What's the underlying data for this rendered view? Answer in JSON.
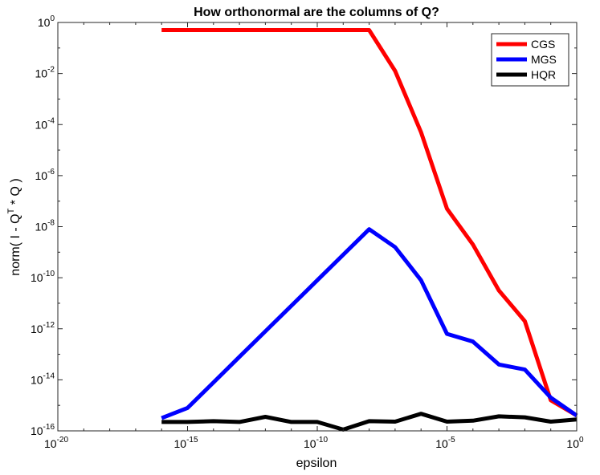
{
  "chart_data": {
    "type": "line",
    "title": "How orthonormal are the columns of Q?",
    "xlabel": "epsilon",
    "ylabel": {
      "pre": "norm(  I  -  Q",
      "sup": "T",
      "post": " * Q  )"
    },
    "xscale": "log",
    "yscale": "log",
    "xlim_exp": [
      -20,
      0
    ],
    "ylim_exp": [
      -16,
      0
    ],
    "xticks": [
      {
        "base": "10",
        "exp": "-20"
      },
      {
        "base": "10",
        "exp": "-15"
      },
      {
        "base": "10",
        "exp": "-10"
      },
      {
        "base": "10",
        "exp": "-5"
      },
      {
        "base": "10",
        "exp": "0"
      }
    ],
    "yticks": [
      {
        "base": "10",
        "exp": "-16"
      },
      {
        "base": "10",
        "exp": "-14"
      },
      {
        "base": "10",
        "exp": "-12"
      },
      {
        "base": "10",
        "exp": "-10"
      },
      {
        "base": "10",
        "exp": "-8"
      },
      {
        "base": "10",
        "exp": "-6"
      },
      {
        "base": "10",
        "exp": "-4"
      },
      {
        "base": "10",
        "exp": "-2"
      },
      {
        "base": "10",
        "exp": "0"
      }
    ],
    "grid": false,
    "legend_position": "top-right",
    "x_log10": [
      -16,
      -15,
      -14,
      -13,
      -12,
      -11,
      -10,
      -9,
      -8,
      -7,
      -6,
      -5,
      -4,
      -3,
      -2,
      -1,
      0
    ],
    "series": [
      {
        "name": "CGS",
        "color": "#ff0000",
        "y_log10": [
          -0.3,
          -0.3,
          -0.3,
          -0.3,
          -0.3,
          -0.3,
          -0.3,
          -0.3,
          -0.3,
          -1.9,
          -4.3,
          -7.3,
          -8.7,
          -10.5,
          -11.7,
          -14.8,
          -15.4
        ]
      },
      {
        "name": "MGS",
        "color": "#0000ff",
        "y_log10": [
          -15.5,
          -15.1,
          -14.1,
          -13.1,
          -12.1,
          -11.1,
          -10.1,
          -9.1,
          -8.1,
          -8.8,
          -10.1,
          -12.2,
          -12.5,
          -13.4,
          -13.6,
          -14.7,
          -15.4
        ]
      },
      {
        "name": "HQR",
        "color": "#000000",
        "y_log10": [
          -15.65,
          -15.65,
          -15.62,
          -15.65,
          -15.45,
          -15.65,
          -15.65,
          -15.95,
          -15.62,
          -15.64,
          -15.33,
          -15.64,
          -15.6,
          -15.43,
          -15.47,
          -15.64,
          -15.55
        ]
      }
    ]
  }
}
